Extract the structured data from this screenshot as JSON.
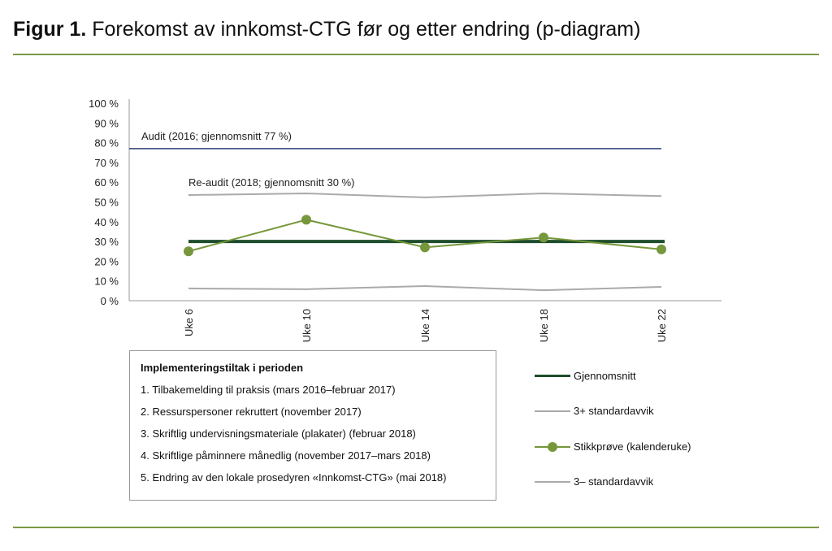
{
  "title": {
    "prefix": "Figur 1.",
    "text": "Forekomst av innkomst-CTG før og etter endring (p-diagram)"
  },
  "chart_data": {
    "type": "line",
    "categories": [
      "Uke 6",
      "Uke 10",
      "Uke 14",
      "Uke 18",
      "Uke 22"
    ],
    "yticks": [
      "0 %",
      "10 %",
      "20 %",
      "30 %",
      "40 %",
      "50 %",
      "60 %",
      "70 %",
      "80 %",
      "90 %",
      "100 %"
    ],
    "ylim": [
      0,
      100
    ],
    "series": [
      {
        "name": "Gjennomsnitt",
        "values": [
          30,
          30,
          30,
          30,
          30
        ],
        "color": "#1e4d2b"
      },
      {
        "name": "3+ standardavvik",
        "values": [
          53.5,
          54.3,
          52.3,
          54.3,
          53
        ],
        "color": "#aaaaaa"
      },
      {
        "name": "Stikkprøve (kalenderuke)",
        "values": [
          25,
          41,
          27,
          32,
          26
        ],
        "color": "#76973b"
      },
      {
        "name": "3– standardavvik",
        "values": [
          6.2,
          5.8,
          7.4,
          5.3,
          7
        ],
        "color": "#aaaaaa"
      }
    ],
    "reference_line": {
      "value": 77,
      "color": "#2f3f74"
    },
    "annotations": [
      "Audit (2016; gjennomsnitt 77 %)",
      "Re-audit (2018; gjennomsnitt 30 %)"
    ],
    "legend_position": "right-bottom"
  },
  "implementation": {
    "heading": "Implementeringstiltak i perioden",
    "items": [
      "1. Tilbakemelding til praksis (mars 2016–februar 2017)",
      "2. Ressurspersoner rekruttert (november 2017)",
      "3. Skriftlig undervisningsmateriale (plakater) (februar 2018)",
      "4. Skriftlige påminnere månedlig (november 2017–mars 2018)",
      "5. Endring av den lokale prosedyren «Innkomst-CTG» (mai 2018)"
    ]
  }
}
